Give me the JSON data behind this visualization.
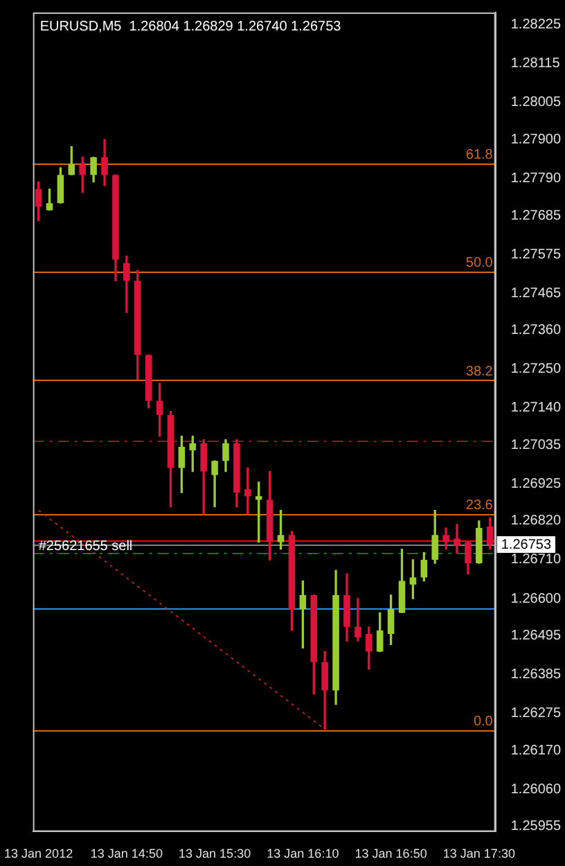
{
  "chart_data": {
    "type": "candlestick",
    "title": "EURUSD,M5  1.26804 1.26829 1.26740 1.26753",
    "categories": [
      "13 Jan 2012",
      null,
      null,
      null,
      null,
      null,
      null,
      null,
      "13 Jan 14:50",
      null,
      null,
      null,
      null,
      null,
      null,
      null,
      "13 Jan 15:30",
      null,
      null,
      null,
      null,
      null,
      null,
      null,
      "13 Jan 16:10",
      null,
      null,
      null,
      null,
      null,
      null,
      null,
      "13 Jan 16:50",
      null,
      null,
      null,
      null,
      null,
      null,
      null,
      "13 Jan 17:30",
      null
    ],
    "ohlc": [
      [
        1.2776,
        1.2778,
        1.2767,
        1.2771
      ],
      [
        1.277,
        1.2776,
        1.277,
        1.2772
      ],
      [
        1.2772,
        1.2782,
        1.2772,
        1.278
      ],
      [
        1.278,
        1.2788,
        1.278,
        1.2783
      ],
      [
        1.2783,
        1.2785,
        1.2775,
        1.278
      ],
      [
        1.278,
        1.2785,
        1.2778,
        1.2785
      ],
      [
        1.2785,
        1.279,
        1.2777,
        1.278
      ],
      [
        1.278,
        1.278,
        1.275,
        1.2756
      ],
      [
        1.2755,
        1.2757,
        1.2741,
        1.275
      ],
      [
        1.275,
        1.2753,
        1.2722,
        1.2729
      ],
      [
        1.2729,
        1.2729,
        1.2714,
        1.2716
      ],
      [
        1.2716,
        1.2721,
        1.2706,
        1.2712
      ],
      [
        1.2712,
        1.2713,
        1.2686,
        1.2697
      ],
      [
        1.2697,
        1.2706,
        1.269,
        1.2703
      ],
      [
        1.2702,
        1.2706,
        1.2696,
        1.2704
      ],
      [
        1.2704,
        1.2705,
        1.2684,
        1.2696
      ],
      [
        1.2695,
        1.2699,
        1.2686,
        1.2699
      ],
      [
        1.2699,
        1.2705,
        1.2696,
        1.2704
      ],
      [
        1.2704,
        1.2705,
        1.2686,
        1.269
      ],
      [
        1.2691,
        1.2697,
        1.2684,
        1.2689
      ],
      [
        1.2688,
        1.2693,
        1.2676,
        1.2689
      ],
      [
        1.2688,
        1.2696,
        1.2671,
        1.2676
      ],
      [
        1.2676,
        1.2685,
        1.2674,
        1.2678
      ],
      [
        1.2678,
        1.2679,
        1.2651,
        1.2657
      ],
      [
        1.2657,
        1.2665,
        1.2646,
        1.2661
      ],
      [
        1.2661,
        1.2661,
        1.2633,
        1.2642
      ],
      [
        1.2642,
        1.2645,
        1.2623,
        1.2634
      ],
      [
        1.2634,
        1.2668,
        1.263,
        1.2661
      ],
      [
        1.2661,
        1.2667,
        1.2648,
        1.2652
      ],
      [
        1.2652,
        1.266,
        1.2648,
        1.2649
      ],
      [
        1.265,
        1.2652,
        1.264,
        1.2645
      ],
      [
        1.2645,
        1.2656,
        1.2645,
        1.2651
      ],
      [
        1.265,
        1.2661,
        1.2647,
        1.2657
      ],
      [
        1.2656,
        1.2674,
        1.2656,
        1.2665
      ],
      [
        1.2664,
        1.2671,
        1.266,
        1.2666
      ],
      [
        1.2666,
        1.2673,
        1.2665,
        1.2671
      ],
      [
        1.2671,
        1.2685,
        1.267,
        1.2678
      ],
      [
        1.2678,
        1.268,
        1.2674,
        1.2676
      ],
      [
        1.2677,
        1.2681,
        1.2673,
        1.2675
      ],
      [
        1.2676,
        1.2676,
        1.2667,
        1.267
      ],
      [
        1.267,
        1.2682,
        1.267,
        1.268
      ],
      [
        1.26804,
        1.26829,
        1.2674,
        1.26753
      ]
    ],
    "colors": [
      "#dc143c",
      "#9acd32",
      "#9acd32",
      "#9acd32",
      "#dc143c",
      "#9acd32",
      "#dc143c",
      "#dc143c",
      "#dc143c",
      "#dc143c",
      "#dc143c",
      "#dc143c",
      "#dc143c",
      "#9acd32",
      "#9acd32",
      "#dc143c",
      "#9acd32",
      "#9acd32",
      "#dc143c",
      "#dc143c",
      "#9acd32",
      "#dc143c",
      "#9acd32",
      "#dc143c",
      "#9acd32",
      "#dc143c",
      "#dc143c",
      "#9acd32",
      "#dc143c",
      "#dc143c",
      "#dc143c",
      "#9acd32",
      "#9acd32",
      "#9acd32",
      "#9acd32",
      "#9acd32",
      "#9acd32",
      "#dc143c",
      "#dc143c",
      "#dc143c",
      "#9acd32",
      "#dc143c"
    ],
    "series": [
      {
        "type": "line",
        "values": [
          1.2685,
          null,
          null,
          null,
          null,
          null,
          null,
          null,
          null,
          null,
          null,
          null,
          null,
          null,
          null,
          null,
          null,
          null,
          null,
          null,
          null,
          null,
          null,
          null,
          null,
          null,
          1.2623,
          null,
          null,
          null,
          null,
          null,
          null,
          null,
          null,
          null,
          null,
          null,
          null,
          null,
          null,
          null
        ],
        "color": "#b22222",
        "line_style": "dotted"
      }
    ],
    "ylim": [
      1.2594,
      1.2826
    ],
    "annotations": [
      {
        "text": "61.8",
        "y": 1.27833
      },
      {
        "text": "50.0",
        "y": 1.27527
      },
      {
        "text": "38.2",
        "y": 1.27219
      },
      {
        "text": "23.6",
        "y": 1.26841
      },
      {
        "text": "0.0",
        "y": 1.26228
      }
    ],
    "yticks": [
      1.28225,
      1.28115,
      1.28005,
      {
        "value": 1.279,
        "label": "1.27900"
      },
      {
        "value": 1.2779,
        "label": "1.27790"
      },
      1.27685,
      1.27575,
      1.27465,
      {
        "value": 1.2736,
        "label": "1.27360"
      },
      {
        "value": 1.2725,
        "label": "1.27250"
      },
      {
        "value": 1.2714,
        "label": "1.27140"
      },
      1.27035,
      1.26925,
      {
        "value": 1.2682,
        "label": "1.26820"
      },
      {
        "value": 1.2671,
        "label": "1.26710"
      },
      {
        "value": 1.266,
        "label": "1.26600"
      },
      1.26495,
      1.26385,
      1.26275,
      {
        "value": 1.2617,
        "label": "1.26170"
      },
      {
        "value": 1.2606,
        "label": "1.26060"
      },
      1.25955
    ],
    "ref_lines": [
      {
        "axis": "y",
        "value": 1.27833,
        "color": "#d2691e"
      },
      {
        "axis": "y",
        "value": 1.27527,
        "color": "#d2691e"
      },
      {
        "axis": "y",
        "value": 1.27219,
        "color": "#d2691e"
      },
      {
        "axis": "y",
        "value": 1.26841,
        "color": "#d2691e"
      },
      {
        "axis": "y",
        "value": 1.26228,
        "color": "#d2691e"
      },
      {
        "axis": "y",
        "value": 1.27048,
        "color": "#a01020",
        "line_style": "dashed"
      },
      {
        "axis": "y",
        "value": 1.26764,
        "label": "#25621655 sell",
        "color": "#ff0000"
      },
      {
        "axis": "y",
        "value": 1.26753,
        "label": "1.26753",
        "color": "#808080"
      },
      {
        "axis": "y",
        "value": 1.2673,
        "color": "#008000",
        "line_style": "dashed"
      },
      {
        "axis": "y",
        "value": 1.26573,
        "color": "#1e90ff"
      }
    ]
  }
}
